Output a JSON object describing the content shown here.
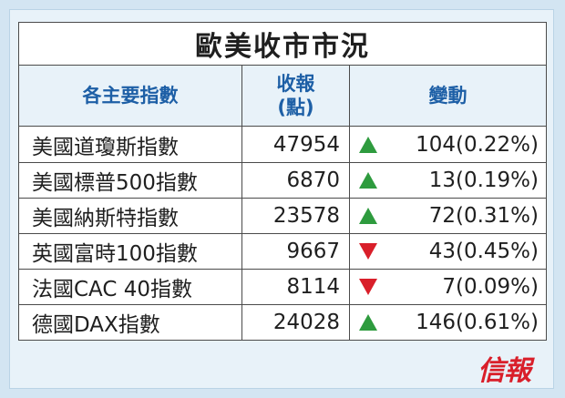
{
  "title": "歐美收市市況",
  "headers": {
    "name": "各主要指數",
    "close_line1": "收報",
    "close_line2": "(點)",
    "change": "變動"
  },
  "rows": [
    {
      "name": "美國道瓊斯指數",
      "close": "47954",
      "direction": "up",
      "change": "104(0.22%)"
    },
    {
      "name": "美國標普500指數",
      "close": "6870",
      "direction": "up",
      "change": "13(0.19%)"
    },
    {
      "name": "美國納斯特指數",
      "close": "23578",
      "direction": "up",
      "change": "72(0.31%)"
    },
    {
      "name": "英國富時100指數",
      "close": "9667",
      "direction": "down",
      "change": "43(0.45%)"
    },
    {
      "name": "法國CAC 40指數",
      "close": "8114",
      "direction": "down",
      "change": "7(0.09%)"
    },
    {
      "name": "德國DAX指數",
      "close": "24028",
      "direction": "up",
      "change": "146(0.61%)"
    }
  ],
  "colors": {
    "up": "#2e9b3e",
    "down": "#d91f2a",
    "header_text": "#1d5fa6"
  },
  "logo": "信報"
}
